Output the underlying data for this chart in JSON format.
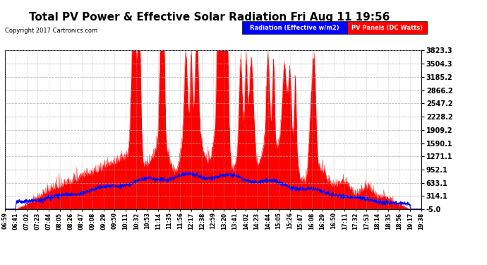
{
  "title": "Total PV Power & Effective Solar Radiation Fri Aug 11 19:56",
  "copyright": "Copyright 2017 Cartronics.com",
  "legend_labels": [
    "Radiation (Effective w/m2)",
    "PV Panels (DC Watts)"
  ],
  "legend_colors_bg": [
    "#0000CC",
    "#CC0000"
  ],
  "legend_colors_text": [
    "#FFFFFF",
    "#FFFFFF"
  ],
  "yticks": [
    -5.0,
    314.1,
    633.1,
    952.1,
    1271.1,
    1590.1,
    1909.2,
    2228.2,
    2547.2,
    2866.2,
    3185.2,
    3504.3,
    3823.3
  ],
  "ymin": -5.0,
  "ymax": 3823.3,
  "plot_bg_color": "#FFFFFF",
  "fig_bg_color": "#FFFFFF",
  "grid_color": "#AAAAAA",
  "x_tick_labels": [
    "06:59",
    "06:41",
    "07:02",
    "07:23",
    "07:44",
    "08:05",
    "08:26",
    "08:47",
    "09:08",
    "09:29",
    "09:50",
    "10:11",
    "10:32",
    "10:53",
    "11:14",
    "11:35",
    "11:56",
    "12:17",
    "12:38",
    "12:59",
    "13:20",
    "13:41",
    "14:02",
    "14:23",
    "14:44",
    "15:05",
    "15:26",
    "15:47",
    "16:08",
    "16:29",
    "16:50",
    "17:11",
    "17:32",
    "17:53",
    "18:14",
    "18:35",
    "18:56",
    "19:17",
    "19:38"
  ],
  "pv_color": "#FF0000",
  "rad_color": "#0000FF",
  "title_fontsize": 11,
  "copyright_fontsize": 6,
  "ytick_fontsize": 7,
  "xtick_fontsize": 5.5
}
